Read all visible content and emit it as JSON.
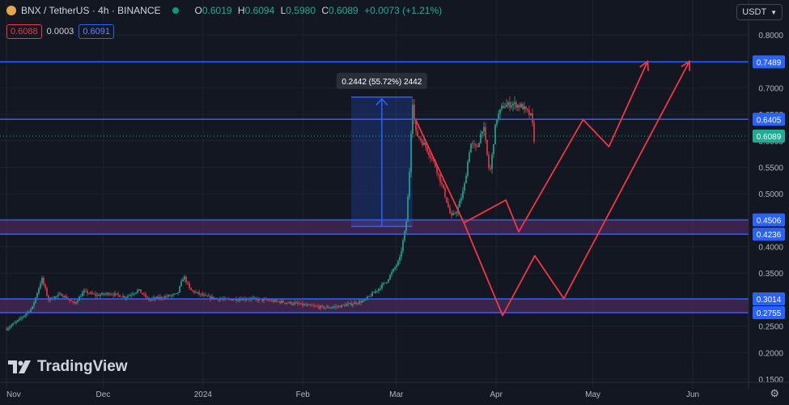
{
  "header": {
    "symbol": "BNX / TetherUS · 4h · BINANCE",
    "o_label": "O",
    "o_value": "0.6019",
    "h_label": "H",
    "h_value": "0.6094",
    "l_label": "L",
    "l_value": "0.5980",
    "c_label": "C",
    "c_value": "0.6089",
    "change": "+0.0073 (+1.21%)",
    "sell_price": "0.6088",
    "spread": "0.0003",
    "buy_price": "0.6091",
    "currency": "USDT",
    "currency_icon": "chevron-down-icon"
  },
  "branding": {
    "logo_text": "TradingView",
    "logo_icon": "tradingview-logo-icon"
  },
  "colors": {
    "background": "#131722",
    "up": "#22ab94",
    "down": "#f23645",
    "level": "#2962ff",
    "zone": "#4a2a5a",
    "projection": "#f23645"
  },
  "chart_data": {
    "type": "candlestick",
    "symbol": "BNX/USDT",
    "interval": "4h",
    "ylim": [
      0.15,
      0.82
    ],
    "y_ticks": [
      0.8,
      0.75,
      0.7,
      0.65,
      0.6,
      0.55,
      0.5,
      0.45,
      0.4,
      0.35,
      0.3,
      0.25,
      0.2,
      0.15
    ],
    "y_tick_labels": [
      "0.8000",
      "",
      "0.7000",
      "0.6500",
      "0.6000",
      "0.5500",
      "0.5000",
      "",
      "0.4000",
      "0.3500",
      "",
      "0.2500",
      "0.2000",
      "0.1500"
    ],
    "x_ticks": [
      "Nov",
      "Dec",
      "2024",
      "Feb",
      "Mar",
      "Apr",
      "May",
      "Jun"
    ],
    "x_tick_dates": [
      "2023-11-01",
      "2023-12-01",
      "2024-01-01",
      "2024-02-01",
      "2024-03-01",
      "2024-04-01",
      "2024-05-01",
      "2024-06-01"
    ],
    "x_range": [
      "2023-11-01",
      "2024-06-06"
    ],
    "last_price": 0.6089,
    "last_price_label": "0.6089",
    "levels": [
      {
        "value": 0.7489,
        "label": "0.7489"
      },
      {
        "value": 0.6405,
        "label": "0.6405"
      },
      {
        "value": 0.4506,
        "label": "0.4506"
      },
      {
        "value": 0.4236,
        "label": "0.4236"
      },
      {
        "value": 0.3014,
        "label": "0.3014"
      },
      {
        "value": 0.2755,
        "label": "0.2755"
      }
    ],
    "zones": [
      {
        "from": 0.4236,
        "to": 0.4506
      },
      {
        "from": 0.2755,
        "to": 0.3014
      }
    ],
    "measure": {
      "start_date": "2024-02-16",
      "end_date": "2024-03-06",
      "low": 0.4383,
      "high": 0.6825,
      "label": "0.2442 (55.72%) 2442"
    },
    "price_path": [
      {
        "date": "2023-11-01",
        "value": 0.245
      },
      {
        "date": "2023-11-05",
        "value": 0.262
      },
      {
        "date": "2023-11-09",
        "value": 0.285
      },
      {
        "date": "2023-11-12",
        "value": 0.34
      },
      {
        "date": "2023-11-14",
        "value": 0.3
      },
      {
        "date": "2023-11-18",
        "value": 0.31
      },
      {
        "date": "2023-11-22",
        "value": 0.292
      },
      {
        "date": "2023-11-25",
        "value": 0.315
      },
      {
        "date": "2023-11-29",
        "value": 0.308
      },
      {
        "date": "2023-12-03",
        "value": 0.312
      },
      {
        "date": "2023-12-08",
        "value": 0.305
      },
      {
        "date": "2023-12-12",
        "value": 0.318
      },
      {
        "date": "2023-12-15",
        "value": 0.3
      },
      {
        "date": "2023-12-20",
        "value": 0.305
      },
      {
        "date": "2023-12-24",
        "value": 0.31
      },
      {
        "date": "2023-12-26",
        "value": 0.345
      },
      {
        "date": "2023-12-28",
        "value": 0.318
      },
      {
        "date": "2024-01-02",
        "value": 0.305
      },
      {
        "date": "2024-01-08",
        "value": 0.3
      },
      {
        "date": "2024-01-15",
        "value": 0.302
      },
      {
        "date": "2024-01-22",
        "value": 0.298
      },
      {
        "date": "2024-01-29",
        "value": 0.293
      },
      {
        "date": "2024-02-03",
        "value": 0.288
      },
      {
        "date": "2024-02-08",
        "value": 0.285
      },
      {
        "date": "2024-02-12",
        "value": 0.287
      },
      {
        "date": "2024-02-16",
        "value": 0.292
      },
      {
        "date": "2024-02-20",
        "value": 0.298
      },
      {
        "date": "2024-02-24",
        "value": 0.318
      },
      {
        "date": "2024-02-27",
        "value": 0.335
      },
      {
        "date": "2024-02-29",
        "value": 0.355
      },
      {
        "date": "2024-03-02",
        "value": 0.375
      },
      {
        "date": "2024-03-04",
        "value": 0.44
      },
      {
        "date": "2024-03-05",
        "value": 0.53
      },
      {
        "date": "2024-03-06",
        "value": 0.68
      },
      {
        "date": "2024-03-07",
        "value": 0.615
      },
      {
        "date": "2024-03-10",
        "value": 0.59
      },
      {
        "date": "2024-03-13",
        "value": 0.555
      },
      {
        "date": "2024-03-16",
        "value": 0.5
      },
      {
        "date": "2024-03-18",
        "value": 0.455
      },
      {
        "date": "2024-03-20",
        "value": 0.47
      },
      {
        "date": "2024-03-22",
        "value": 0.51
      },
      {
        "date": "2024-03-24",
        "value": 0.595
      },
      {
        "date": "2024-03-26",
        "value": 0.585
      },
      {
        "date": "2024-03-28",
        "value": 0.63
      },
      {
        "date": "2024-03-30",
        "value": 0.535
      },
      {
        "date": "2024-04-01",
        "value": 0.64
      },
      {
        "date": "2024-04-03",
        "value": 0.665
      },
      {
        "date": "2024-04-06",
        "value": 0.67
      },
      {
        "date": "2024-04-09",
        "value": 0.665
      },
      {
        "date": "2024-04-12",
        "value": 0.645
      },
      {
        "date": "2024-04-13",
        "value": 0.59
      },
      {
        "date": "2024-04-13",
        "value": 0.6089
      }
    ],
    "projection_paths": [
      [
        {
          "date": "2024-03-07",
          "value": 0.64
        },
        {
          "date": "2024-03-22",
          "value": 0.445
        },
        {
          "date": "2024-04-04",
          "value": 0.488
        },
        {
          "date": "2024-04-08",
          "value": 0.428
        },
        {
          "date": "2024-04-28",
          "value": 0.64
        },
        {
          "date": "2024-05-06",
          "value": 0.589
        },
        {
          "date": "2024-05-18",
          "value": 0.75
        }
      ],
      [
        {
          "date": "2024-03-22",
          "value": 0.445
        },
        {
          "date": "2024-04-03",
          "value": 0.27
        },
        {
          "date": "2024-04-13",
          "value": 0.383
        },
        {
          "date": "2024-04-22",
          "value": 0.302
        },
        {
          "date": "2024-05-31",
          "value": 0.75
        }
      ]
    ]
  }
}
